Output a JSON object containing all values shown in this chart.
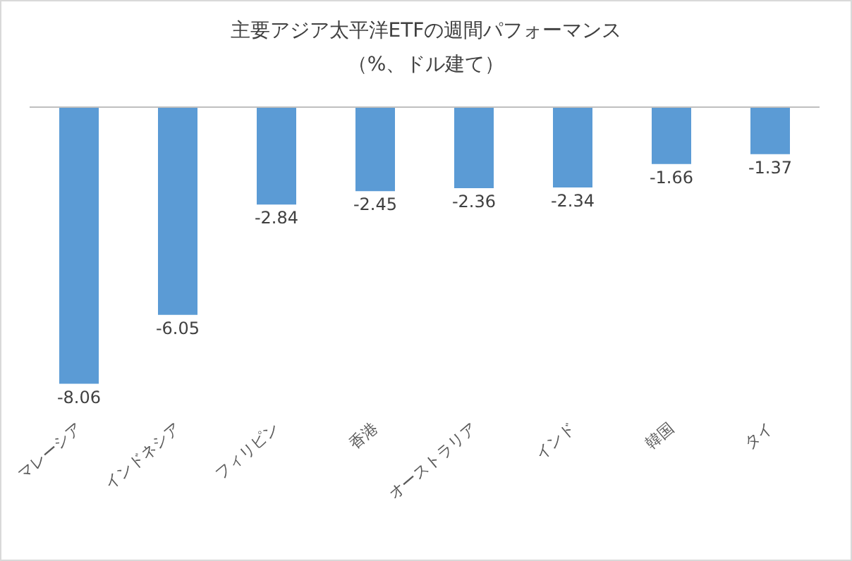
{
  "chart_data": {
    "type": "bar",
    "title": "主要アジア太平洋ETFの週間パフォーマンス",
    "subtitle": "（%、ドル建て）",
    "categories": [
      "マレーシア",
      "インドネシア",
      "フィリピン",
      "香港",
      "オーストラリア",
      "インド",
      "韓国",
      "タイ"
    ],
    "values": [
      -8.06,
      -6.05,
      -2.84,
      -2.45,
      -2.36,
      -2.34,
      -1.66,
      -1.37
    ],
    "color": "#5b9bd5",
    "data_labels": true
  }
}
